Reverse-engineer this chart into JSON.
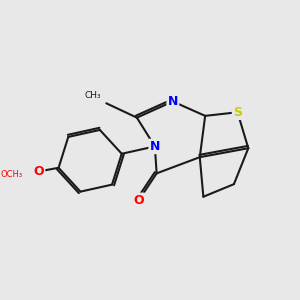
{
  "background_color": "#e8e8e8",
  "bond_color": "#1a1a1a",
  "atom_colors": {
    "N": "#0000ff",
    "O": "#ff0000",
    "S": "#cccc00",
    "C": "#1a1a1a"
  },
  "font_size_atom": 9,
  "font_size_label": 7,
  "line_width": 1.5
}
